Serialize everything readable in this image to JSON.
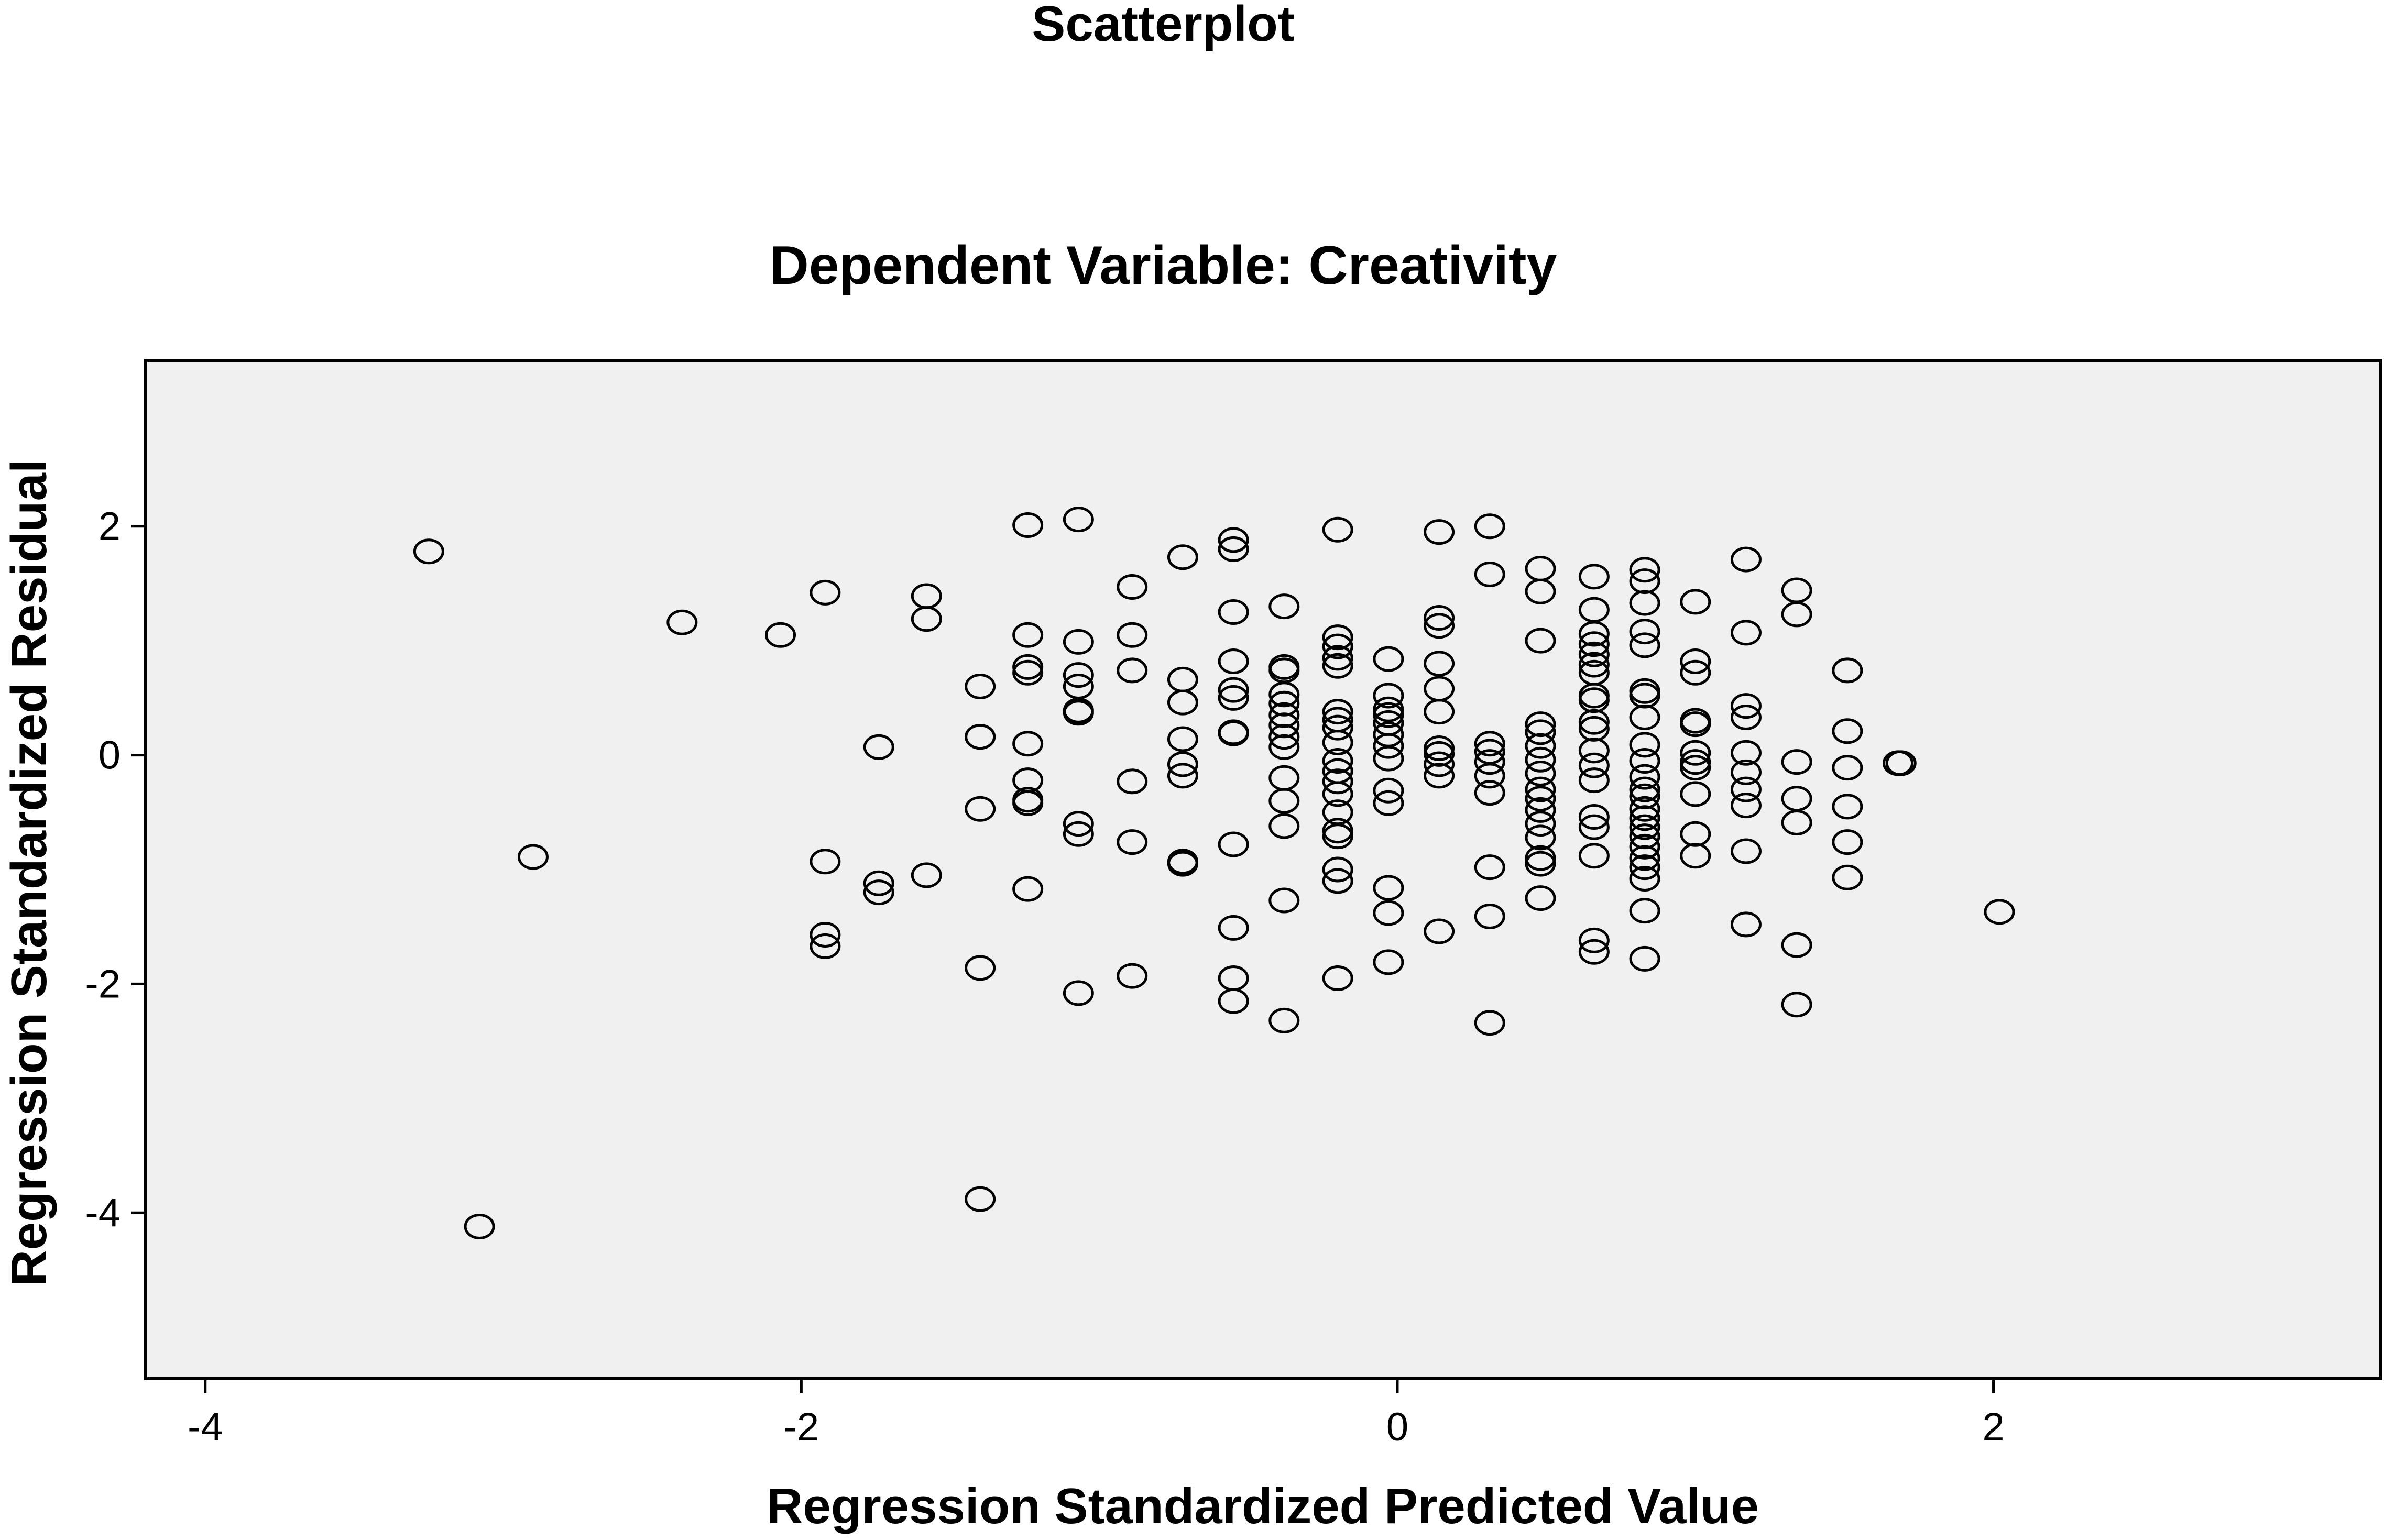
{
  "chart_data": {
    "type": "scatter",
    "title": "Scatterplot",
    "subtitle": "Dependent Variable: Creativity",
    "xlabel": "Regression Standardized Predicted Value",
    "ylabel": "Regression Standardized Residual",
    "xlim": [
      -4.2,
      3.3
    ],
    "ylim": [
      -5.45,
      3.45
    ],
    "xticks": [
      -4,
      -2,
      0,
      2
    ],
    "yticks": [
      2,
      0,
      -2,
      -4
    ],
    "xtick_labels": [
      "-4",
      "-2",
      "0",
      "2"
    ],
    "ytick_labels": [
      "2",
      "0",
      "-2",
      "-4"
    ],
    "grid": false,
    "colors": {
      "plot_background": "#f0f0f0",
      "marker": "#000000"
    },
    "series": [
      {
        "marker": "open-circle",
        "points": [
          [
            -3.25,
            1.78
          ],
          [
            -3.08,
            -4.12
          ],
          [
            -2.9,
            -0.89
          ],
          [
            -2.4,
            1.16
          ],
          [
            -2.07,
            1.05
          ],
          [
            -1.92,
            1.42
          ],
          [
            -1.92,
            -0.93
          ],
          [
            -1.92,
            -1.57
          ],
          [
            -1.92,
            -1.67
          ],
          [
            -1.74,
            0.07
          ],
          [
            -1.74,
            -1.12
          ],
          [
            -1.74,
            -1.2
          ],
          [
            -1.58,
            1.39
          ],
          [
            -1.58,
            1.19
          ],
          [
            -1.58,
            -1.05
          ],
          [
            -1.4,
            0.6
          ],
          [
            -1.4,
            0.16
          ],
          [
            -1.4,
            0.16
          ],
          [
            -1.4,
            -0.47
          ],
          [
            -1.4,
            -1.86
          ],
          [
            -1.4,
            -3.88
          ],
          [
            -1.24,
            2.01
          ],
          [
            -1.24,
            1.05
          ],
          [
            -1.24,
            0.77
          ],
          [
            -1.24,
            0.72
          ],
          [
            -1.24,
            0.1
          ],
          [
            -1.24,
            -0.22
          ],
          [
            -1.24,
            -0.39
          ],
          [
            -1.24,
            -0.42
          ],
          [
            -1.24,
            -1.17
          ],
          [
            -1.07,
            2.06
          ],
          [
            -1.07,
            0.99
          ],
          [
            -1.07,
            0.7
          ],
          [
            -1.07,
            0.6
          ],
          [
            -1.07,
            0.39
          ],
          [
            -1.07,
            0.37
          ],
          [
            -1.07,
            -0.6
          ],
          [
            -1.07,
            -0.69
          ],
          [
            -1.07,
            -2.08
          ],
          [
            -0.89,
            1.47
          ],
          [
            -0.89,
            1.05
          ],
          [
            -0.89,
            0.74
          ],
          [
            -0.89,
            -0.23
          ],
          [
            -0.89,
            -0.76
          ],
          [
            -0.89,
            -1.93
          ],
          [
            -0.72,
            1.73
          ],
          [
            -0.72,
            0.66
          ],
          [
            -0.72,
            0.46
          ],
          [
            -0.72,
            0.14
          ],
          [
            -0.72,
            -0.08
          ],
          [
            -0.72,
            -0.18
          ],
          [
            -0.72,
            -0.93
          ],
          [
            -0.72,
            -0.95
          ],
          [
            -0.55,
            1.88
          ],
          [
            -0.55,
            1.8
          ],
          [
            -0.55,
            1.25
          ],
          [
            -0.55,
            0.82
          ],
          [
            -0.55,
            0.57
          ],
          [
            -0.55,
            0.5
          ],
          [
            -0.55,
            0.2
          ],
          [
            -0.55,
            0.19
          ],
          [
            -0.55,
            -0.78
          ],
          [
            -0.55,
            -1.51
          ],
          [
            -0.55,
            -1.95
          ],
          [
            -0.55,
            -2.15
          ],
          [
            -0.38,
            1.3
          ],
          [
            -0.38,
            0.77
          ],
          [
            -0.38,
            0.74
          ],
          [
            -0.38,
            0.53
          ],
          [
            -0.38,
            0.45
          ],
          [
            -0.38,
            0.35
          ],
          [
            -0.38,
            0.26
          ],
          [
            -0.38,
            0.16
          ],
          [
            -0.38,
            0.07
          ],
          [
            -0.38,
            -0.2
          ],
          [
            -0.38,
            -0.4
          ],
          [
            -0.38,
            -0.62
          ],
          [
            -0.38,
            -1.27
          ],
          [
            -0.38,
            -2.32
          ],
          [
            -0.2,
            1.97
          ],
          [
            -0.2,
            1.03
          ],
          [
            -0.2,
            0.95
          ],
          [
            -0.2,
            0.85
          ],
          [
            -0.2,
            0.78
          ],
          [
            -0.2,
            0.38
          ],
          [
            -0.2,
            0.31
          ],
          [
            -0.2,
            0.24
          ],
          [
            -0.2,
            0.11
          ],
          [
            -0.2,
            -0.05
          ],
          [
            -0.2,
            -0.14
          ],
          [
            -0.2,
            -0.23
          ],
          [
            -0.2,
            -0.34
          ],
          [
            -0.2,
            -0.5
          ],
          [
            -0.2,
            -0.66
          ],
          [
            -0.2,
            -0.71
          ],
          [
            -0.2,
            -1.0
          ],
          [
            -0.2,
            -1.1
          ],
          [
            -0.2,
            -1.95
          ],
          [
            -0.03,
            0.84
          ],
          [
            -0.03,
            0.52
          ],
          [
            -0.03,
            0.4
          ],
          [
            -0.03,
            0.35
          ],
          [
            -0.03,
            0.28
          ],
          [
            -0.03,
            0.18
          ],
          [
            -0.03,
            0.08
          ],
          [
            -0.03,
            -0.03
          ],
          [
            -0.03,
            -0.31
          ],
          [
            -0.03,
            -0.42
          ],
          [
            -0.03,
            -1.16
          ],
          [
            -0.03,
            -1.38
          ],
          [
            -0.03,
            -1.81
          ],
          [
            0.14,
            1.95
          ],
          [
            0.14,
            1.2
          ],
          [
            0.14,
            1.13
          ],
          [
            0.14,
            0.8
          ],
          [
            0.14,
            0.58
          ],
          [
            0.14,
            0.38
          ],
          [
            0.14,
            0.06
          ],
          [
            0.14,
            0.01
          ],
          [
            0.14,
            -0.08
          ],
          [
            0.14,
            -0.18
          ],
          [
            0.14,
            -1.54
          ],
          [
            0.31,
            2.0
          ],
          [
            0.31,
            1.58
          ],
          [
            0.31,
            0.1
          ],
          [
            0.31,
            0.03
          ],
          [
            0.31,
            -0.06
          ],
          [
            0.31,
            -0.18
          ],
          [
            0.31,
            -0.33
          ],
          [
            0.31,
            -0.98
          ],
          [
            0.31,
            -1.41
          ],
          [
            0.31,
            -2.34
          ],
          [
            0.48,
            1.63
          ],
          [
            0.48,
            1.43
          ],
          [
            0.48,
            1.0
          ],
          [
            0.48,
            0.27
          ],
          [
            0.48,
            0.2
          ],
          [
            0.48,
            0.08
          ],
          [
            0.48,
            -0.04
          ],
          [
            0.48,
            -0.16
          ],
          [
            0.48,
            -0.3
          ],
          [
            0.48,
            -0.38
          ],
          [
            0.48,
            -0.48
          ],
          [
            0.48,
            -0.6
          ],
          [
            0.48,
            -0.72
          ],
          [
            0.48,
            -0.9
          ],
          [
            0.48,
            -0.95
          ],
          [
            0.48,
            -1.25
          ],
          [
            0.66,
            1.56
          ],
          [
            0.66,
            1.27
          ],
          [
            0.66,
            1.06
          ],
          [
            0.66,
            0.97
          ],
          [
            0.66,
            0.88
          ],
          [
            0.66,
            0.79
          ],
          [
            0.66,
            0.72
          ],
          [
            0.66,
            0.52
          ],
          [
            0.66,
            0.48
          ],
          [
            0.66,
            0.29
          ],
          [
            0.66,
            0.23
          ],
          [
            0.66,
            0.04
          ],
          [
            0.66,
            -0.09
          ],
          [
            0.66,
            -0.22
          ],
          [
            0.66,
            -0.54
          ],
          [
            0.66,
            -0.63
          ],
          [
            0.66,
            -0.88
          ],
          [
            0.66,
            -1.62
          ],
          [
            0.66,
            -1.72
          ],
          [
            0.83,
            1.62
          ],
          [
            0.83,
            1.52
          ],
          [
            0.83,
            1.33
          ],
          [
            0.83,
            1.08
          ],
          [
            0.83,
            0.96
          ],
          [
            0.83,
            0.56
          ],
          [
            0.83,
            0.52
          ],
          [
            0.83,
            0.33
          ],
          [
            0.83,
            0.09
          ],
          [
            0.83,
            -0.05
          ],
          [
            0.83,
            -0.19
          ],
          [
            0.83,
            -0.3
          ],
          [
            0.83,
            -0.36
          ],
          [
            0.83,
            -0.47
          ],
          [
            0.83,
            -0.55
          ],
          [
            0.83,
            -0.63
          ],
          [
            0.83,
            -0.71
          ],
          [
            0.83,
            -0.8
          ],
          [
            0.83,
            -0.9
          ],
          [
            0.83,
            -0.98
          ],
          [
            0.83,
            -1.08
          ],
          [
            0.83,
            -1.36
          ],
          [
            0.83,
            -1.78
          ],
          [
            1.0,
            1.34
          ],
          [
            1.0,
            0.82
          ],
          [
            1.0,
            0.72
          ],
          [
            1.0,
            0.3
          ],
          [
            1.0,
            0.27
          ],
          [
            1.0,
            0.02
          ],
          [
            1.0,
            -0.06
          ],
          [
            1.0,
            -0.11
          ],
          [
            1.0,
            -0.34
          ],
          [
            1.0,
            -0.69
          ],
          [
            1.0,
            -0.88
          ],
          [
            1.17,
            1.71
          ],
          [
            1.17,
            1.07
          ],
          [
            1.17,
            0.43
          ],
          [
            1.17,
            0.33
          ],
          [
            1.17,
            0.02
          ],
          [
            1.17,
            -0.15
          ],
          [
            1.17,
            -0.3
          ],
          [
            1.17,
            -0.44
          ],
          [
            1.17,
            -0.84
          ],
          [
            1.17,
            -1.48
          ],
          [
            1.34,
            1.44
          ],
          [
            1.34,
            1.23
          ],
          [
            1.34,
            -0.06
          ],
          [
            1.34,
            -0.38
          ],
          [
            1.34,
            -0.59
          ],
          [
            1.34,
            -1.66
          ],
          [
            1.34,
            -2.18
          ],
          [
            1.51,
            0.74
          ],
          [
            1.51,
            0.21
          ],
          [
            1.51,
            -0.11
          ],
          [
            1.51,
            -0.45
          ],
          [
            1.51,
            -0.76
          ],
          [
            1.51,
            -1.07
          ],
          [
            1.68,
            -0.07
          ],
          [
            1.69,
            -0.07
          ],
          [
            2.02,
            -1.37
          ]
        ]
      }
    ]
  }
}
